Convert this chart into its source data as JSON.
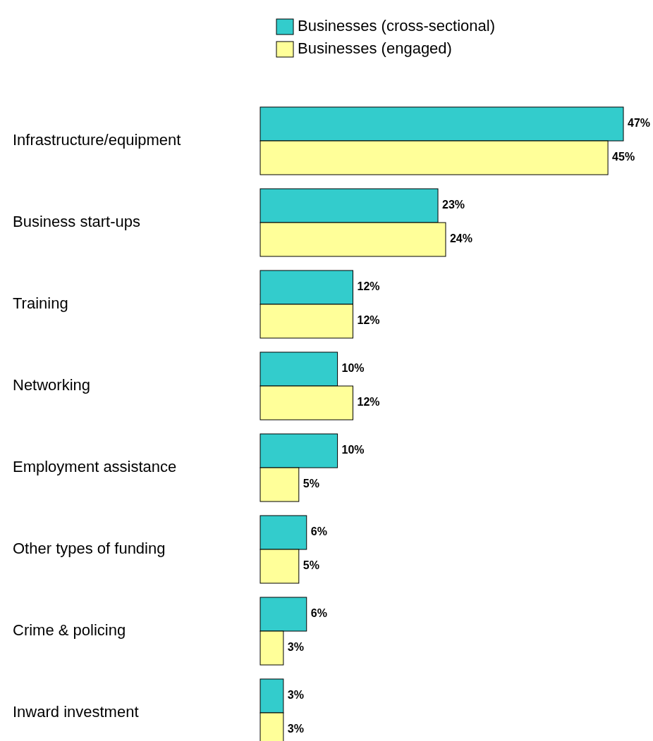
{
  "chart_data": {
    "type": "bar",
    "orientation": "horizontal",
    "legend": "top",
    "categories": [
      "Infrastructure/equipment",
      "Business start-ups",
      "Training",
      "Networking",
      "Employment assistance",
      "Other types of funding",
      "Crime & policing",
      "Inward investment"
    ],
    "series": [
      {
        "name": "Businesses (cross-sectional)",
        "color": "#33cccc",
        "values": [
          47,
          23,
          12,
          10,
          10,
          6,
          6,
          3
        ],
        "value_labels": [
          "47%",
          "23%",
          "12%",
          "10%",
          "10%",
          "6%",
          "6%",
          "3%"
        ]
      },
      {
        "name": "Businesses (engaged)",
        "color": "#ffff99",
        "values": [
          45,
          24,
          12,
          12,
          5,
          5,
          3,
          3
        ],
        "value_labels": [
          "45%",
          "24%",
          "12%",
          "12%",
          "5%",
          "5%",
          "3%",
          "3%"
        ]
      }
    ]
  }
}
